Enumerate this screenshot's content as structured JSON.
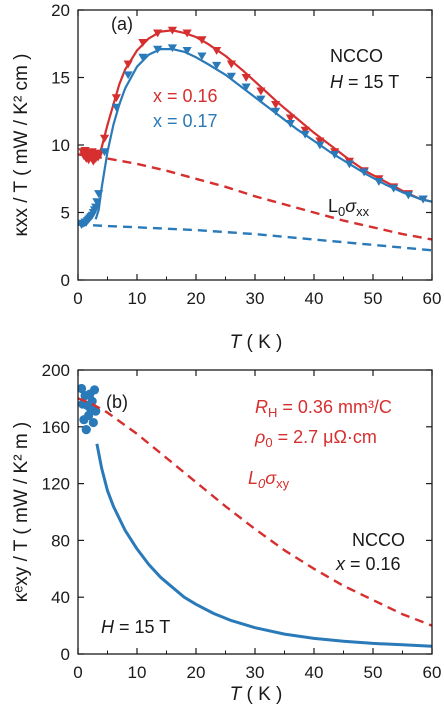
{
  "colors": {
    "red": "#d62f2f",
    "blue": "#2a7ab9",
    "axis": "#1a1a1a"
  },
  "chart_data": [
    {
      "panel_label": "(a)",
      "type": "line",
      "xlabel_italic": "T",
      "xlabel_unit": "( K )",
      "ylabel": "κxx / T ( mW / K² cm )",
      "xlim": [
        0,
        60
      ],
      "ylim": [
        0,
        20
      ],
      "xticks": [
        "0",
        "10",
        "20",
        "30",
        "40",
        "50",
        "60"
      ],
      "yticks": [
        "0",
        "5",
        "10",
        "15",
        "20"
      ],
      "annotations": {
        "material": "NCCO",
        "field_prefix": "H",
        "field_value": "= 15 T",
        "x016": "x = 0.16",
        "x017": "x = 0.17",
        "l0_base": "L",
        "l0_sub0": "0",
        "l0_sigma": "σ",
        "l0_subxx": "xx"
      },
      "series": [
        {
          "name": "x = 0.16",
          "color": "red",
          "style": "markers",
          "x": [
            0.8,
            1.0,
            1.2,
            1.4,
            1.6,
            1.8,
            2.0,
            2.2,
            2.4,
            2.6,
            2.8,
            3.0,
            3.2,
            3.4,
            3.6,
            4.5,
            6.5,
            8.5,
            11,
            13.5,
            16,
            18.5,
            21,
            23.5,
            26,
            28.5,
            31,
            33.5,
            36,
            38.5,
            41,
            43.5,
            46,
            48.5,
            51,
            53.5,
            56,
            58.5
          ],
          "y": [
            9.5,
            9.2,
            9.6,
            9.0,
            9.4,
            8.9,
            9.3,
            9.1,
            9.5,
            8.8,
            9.2,
            9.0,
            9.4,
            9.1,
            9.3,
            10.5,
            13.5,
            16.0,
            17.6,
            18.3,
            18.5,
            18.3,
            17.8,
            17.0,
            16.0,
            15.0,
            14.0,
            13.0,
            12.0,
            11.1,
            10.3,
            9.5,
            8.8,
            8.1,
            7.5,
            6.9,
            6.4,
            6.0
          ]
        },
        {
          "name": "x = 0.16 fit",
          "color": "red",
          "style": "solid",
          "x": [
            3.5,
            4,
            5,
            6,
            7,
            8,
            10,
            12,
            14,
            16,
            18,
            20,
            22,
            25,
            28,
            31,
            34,
            37,
            40,
            43,
            46,
            49,
            52,
            55,
            58,
            60
          ],
          "y": [
            9.2,
            9.8,
            11.5,
            13.0,
            14.5,
            15.6,
            17.0,
            17.9,
            18.4,
            18.5,
            18.3,
            18.0,
            17.5,
            16.6,
            15.5,
            14.3,
            13.1,
            12.0,
            10.9,
            9.9,
            8.9,
            8.0,
            7.3,
            6.6,
            6.0,
            5.8
          ]
        },
        {
          "name": "x = 0.17",
          "color": "blue",
          "style": "markers",
          "x": [
            0.6,
            0.8,
            1.0,
            1.2,
            1.4,
            1.6,
            1.8,
            2.0,
            2.2,
            2.4,
            2.6,
            2.8,
            3.0,
            3.2,
            3.5,
            4.5,
            6.5,
            8.5,
            11,
            13.5,
            16,
            18.5,
            21,
            23.5,
            26,
            28.5,
            31,
            33.5,
            36,
            38.5,
            41,
            43.5,
            46,
            48.5,
            51,
            53.5,
            56,
            58.5
          ],
          "y": [
            4.1,
            4.2,
            4.2,
            4.3,
            4.3,
            4.4,
            4.5,
            4.6,
            4.7,
            4.8,
            5.0,
            5.2,
            5.4,
            5.8,
            6.4,
            9.5,
            12.8,
            15.2,
            16.5,
            17.1,
            17.2,
            17.0,
            16.6,
            15.9,
            15.1,
            14.3,
            13.4,
            12.5,
            11.6,
            10.8,
            10.0,
            9.3,
            8.6,
            8.0,
            7.3,
            6.8,
            6.3,
            6.0
          ]
        },
        {
          "name": "x = 0.17 fit",
          "color": "blue",
          "style": "solid",
          "x": [
            3.0,
            3.5,
            4,
            5,
            6,
            7,
            8,
            10,
            12,
            14,
            16,
            18,
            20,
            22,
            25,
            28,
            31,
            34,
            37,
            40,
            43,
            46,
            49,
            52,
            55,
            58,
            60
          ],
          "y": [
            4.5,
            5.2,
            6.8,
            9.5,
            11.5,
            13.0,
            14.2,
            15.8,
            16.7,
            17.1,
            17.1,
            16.9,
            16.5,
            16.0,
            15.2,
            14.2,
            13.2,
            12.2,
            11.2,
            10.3,
            9.4,
            8.6,
            7.8,
            7.1,
            6.5,
            6.0,
            5.8
          ]
        },
        {
          "name": "L0σxx x = 0.16",
          "color": "red",
          "style": "dashed",
          "x": [
            0,
            5,
            10,
            15,
            20,
            25,
            30,
            35,
            40,
            45,
            50,
            55,
            60
          ],
          "y": [
            9.3,
            9.0,
            8.6,
            8.1,
            7.5,
            6.9,
            6.2,
            5.6,
            5.0,
            4.4,
            3.9,
            3.4,
            3.0
          ]
        },
        {
          "name": "L0σxx x = 0.17",
          "color": "blue",
          "style": "dashed",
          "x": [
            0,
            5,
            10,
            15,
            20,
            25,
            30,
            35,
            40,
            45,
            50,
            55,
            60
          ],
          "y": [
            4.1,
            4.0,
            3.9,
            3.8,
            3.7,
            3.55,
            3.4,
            3.2,
            3.0,
            2.8,
            2.6,
            2.4,
            2.2
          ]
        }
      ]
    },
    {
      "panel_label": "(b)",
      "type": "line",
      "xlabel_italic": "T",
      "xlabel_unit": "( K )",
      "ylabel": "κᵉxy / T ( mW / K² m )",
      "xlim": [
        0,
        60
      ],
      "ylim": [
        0,
        200
      ],
      "xticks": [
        "0",
        "10",
        "20",
        "30",
        "40",
        "50",
        "60"
      ],
      "yticks": [
        "0",
        "40",
        "80",
        "120",
        "160",
        "200"
      ],
      "annotations": {
        "rh_base": "R",
        "rh_sub": "H",
        "rh_value": "= 0.36 mm³/C",
        "rho_base": "ρ",
        "rho_sub": "0",
        "rho_value": "= 2.7 μΩ·cm",
        "l0_base": "L",
        "l0_sub0": "0",
        "l0_sigma": "σ",
        "l0_subxy": "xy",
        "material": "NCCO",
        "doping_prefix": "x",
        "doping_value": "= 0.16",
        "field_prefix": "H",
        "field_value": "= 15 T"
      },
      "series": [
        {
          "name": "x = 0.16 data",
          "color": "blue",
          "style": "markers",
          "x": [
            0.6,
            0.8,
            1.0,
            1.2,
            1.4,
            1.6,
            1.8,
            2.0,
            2.2,
            2.4,
            2.6,
            2.8,
            3.0
          ],
          "y": [
            187,
            176,
            165,
            182,
            158,
            175,
            168,
            183,
            172,
            178,
            163,
            186,
            171
          ]
        },
        {
          "name": "x = 0.16 curve",
          "color": "blue",
          "style": "solid",
          "x": [
            3.2,
            4,
            5,
            6,
            8,
            10,
            12,
            14,
            16,
            18,
            20,
            23,
            26,
            30,
            35,
            40,
            45,
            50,
            55,
            60
          ],
          "y": [
            148,
            131,
            115,
            104,
            87,
            74,
            63,
            54,
            47,
            40,
            35,
            28.5,
            23.5,
            18.5,
            14,
            11,
            9,
            7.5,
            6.5,
            5.5
          ]
        },
        {
          "name": "L0σxy",
          "color": "red",
          "style": "dashed",
          "x": [
            0,
            2,
            5,
            10,
            15,
            20,
            25,
            30,
            35,
            40,
            45,
            50,
            55,
            60
          ],
          "y": [
            180,
            177,
            170,
            155,
            138,
            121,
            104,
            88,
            73,
            60,
            48,
            38,
            28,
            20
          ]
        }
      ]
    }
  ]
}
